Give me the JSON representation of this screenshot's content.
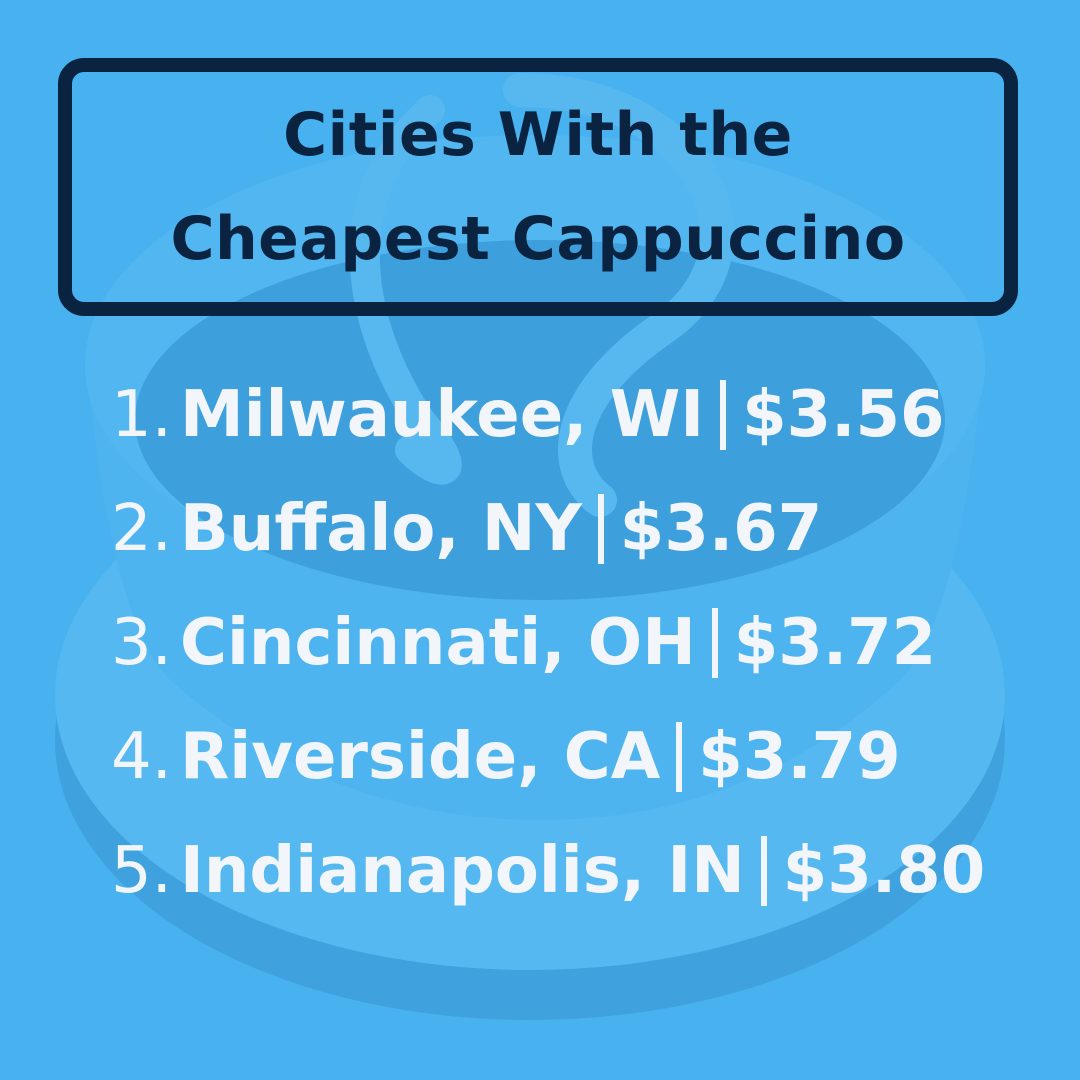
{
  "colors": {
    "background": "#47b2ef",
    "title": "#0a2340",
    "text": "#f2f6fa"
  },
  "background_illustration": "coffee-cup-icon",
  "title": {
    "line1": "Cities With the",
    "line2": "Cheapest Cappuccino"
  },
  "items": [
    {
      "rank": "1.",
      "city": "Milwaukee, WI",
      "price": "$3.56"
    },
    {
      "rank": "2.",
      "city": "Buffalo, NY",
      "price": "$3.67"
    },
    {
      "rank": "3.",
      "city": "Cincinnati, OH",
      "price": "$3.72"
    },
    {
      "rank": "4.",
      "city": "Riverside, CA",
      "price": "$3.79"
    },
    {
      "rank": "5.",
      "city": "Indianapolis, IN",
      "price": "$3.80"
    }
  ]
}
